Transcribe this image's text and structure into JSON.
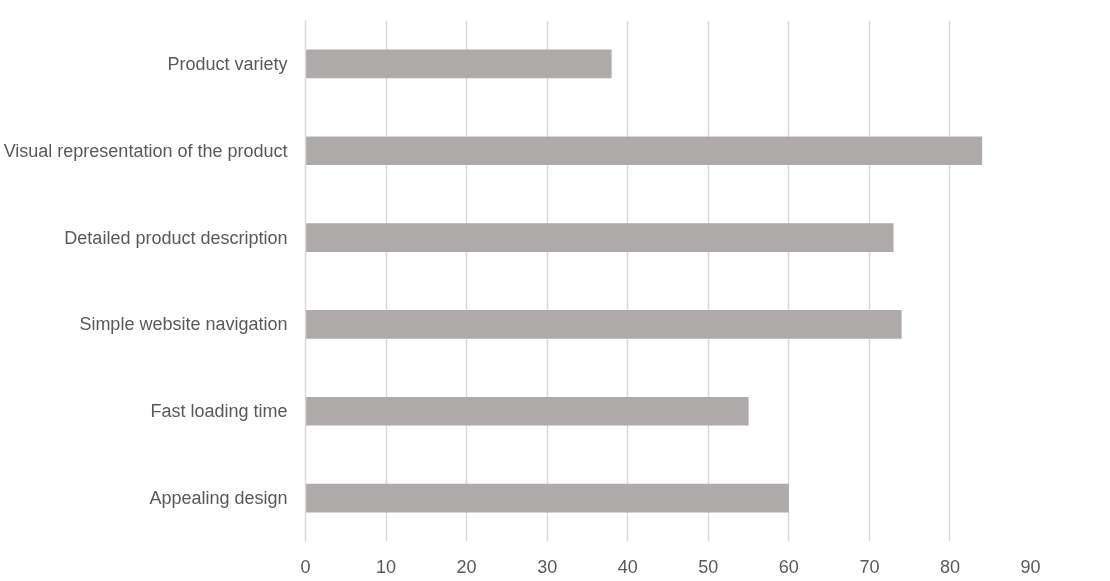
{
  "chart_data": {
    "type": "bar",
    "orientation": "horizontal",
    "categories": [
      "Product variety",
      "Visual representation of the product",
      "Detailed product description",
      "Simple website navigation",
      "Fast loading time",
      "Appealing design"
    ],
    "values": [
      38,
      84,
      73,
      74,
      55,
      60
    ],
    "color": "#aeaaaa",
    "xlim": [
      0,
      90
    ],
    "xticks": [
      0,
      10,
      20,
      30,
      40,
      50,
      60,
      70,
      80,
      90
    ],
    "grid": "x"
  }
}
